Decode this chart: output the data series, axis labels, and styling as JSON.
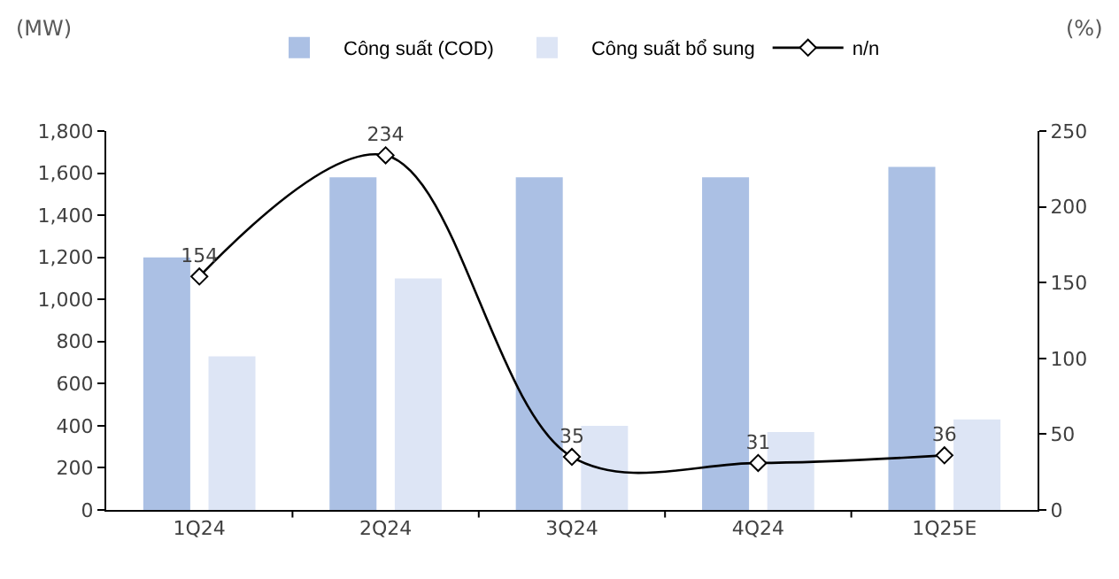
{
  "chart_data": {
    "type": "bar",
    "ylabel": "(MW)",
    "y2label": "(%)",
    "categories": [
      "1Q24",
      "2Q24",
      "3Q24",
      "4Q24",
      "1Q25E"
    ],
    "series": [
      {
        "name": "Công suất (COD)",
        "color": "#abc0e4",
        "values": [
          1200,
          1580,
          1580,
          1580,
          1630
        ]
      },
      {
        "name": "Công suất bổ sung",
        "color": "#dde5f5",
        "values": [
          730,
          1100,
          400,
          370,
          430
        ]
      },
      {
        "name": "n/n",
        "type": "line",
        "axis": "y2",
        "color": "#000000",
        "marker": "diamond",
        "values": [
          154,
          234,
          35,
          31,
          36
        ],
        "value_labels": [
          "154",
          "234",
          "35",
          "31",
          "36"
        ]
      }
    ],
    "ylim": [
      0,
      1800
    ],
    "yticks": [
      0,
      {
        "value": 200,
        "label": "200"
      },
      {
        "value": 400,
        "label": "400"
      },
      {
        "value": 600,
        "label": "600"
      },
      {
        "value": 800,
        "label": "800"
      },
      {
        "value": 1000,
        "label": "1,000"
      },
      {
        "value": 1200,
        "label": "1,200"
      },
      {
        "value": 1400,
        "label": "1,400"
      },
      {
        "value": 1600,
        "label": "1,600"
      },
      {
        "value": 1800,
        "label": "1,800"
      }
    ],
    "y2lim": [
      0,
      250
    ],
    "y2ticks": [
      0,
      50,
      100,
      150,
      200,
      250
    ],
    "grid": false,
    "legend": "top"
  }
}
